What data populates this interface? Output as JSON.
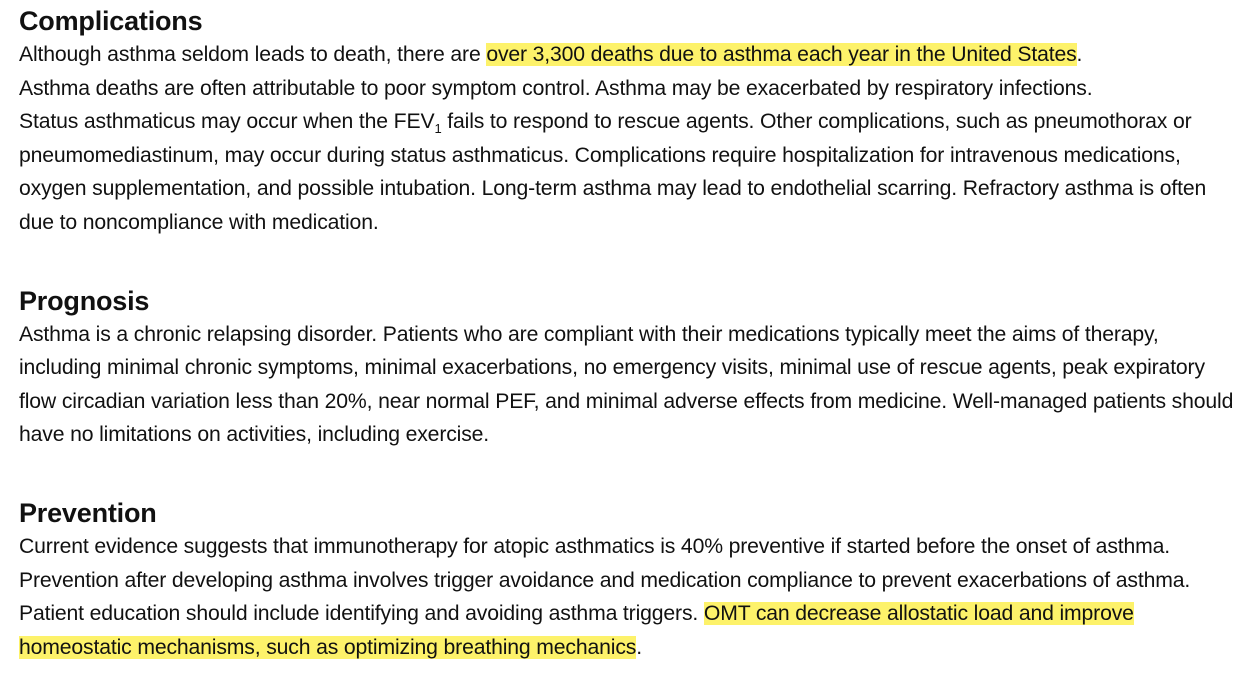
{
  "complications": {
    "heading": "Complications",
    "p1_pre": "Although asthma seldom leads to death, there are ",
    "p1_hl": "over 3,300 deaths due to asthma each year in the United States",
    "p1_post": ".",
    "p2": "Asthma deaths are often attributable to poor symptom control. Asthma may be exacerbated by respiratory infections.",
    "p3_pre": "Status asthmaticus may occur when the FEV",
    "p3_sub": "1",
    "p3_post": " fails to respond to rescue agents. Other complications, such as pneumothorax or pneumomediastinum, may occur during status asthmaticus. Complications require hospitalization for intravenous medications, oxygen supplementation, and possible intubation. Long-term asthma may lead to endothelial scarring. Refractory asthma is often due to noncompliance with medication."
  },
  "prognosis": {
    "heading": "Prognosis",
    "body": "Asthma is a chronic relapsing disorder. Patients who are compliant with their medications typically meet the aims of therapy, including minimal chronic symptoms, minimal exacerbations, no emergency visits, minimal use of rescue agents, peak expiratory flow circadian variation less than 20%, near normal PEF, and minimal adverse effects from medicine. Well-managed patients should have no limitations on activities, including exercise."
  },
  "prevention": {
    "heading": "Prevention",
    "body_pre": "Current evidence suggests that immunotherapy for atopic asthmatics is 40% preventive if started before the onset of asthma. Prevention after developing asthma involves trigger avoidance and medication compliance to prevent exacerbations of asthma. Patient education should include identifying and avoiding asthma triggers. ",
    "body_hl": "OMT can decrease allostatic load and improve homeostatic mechanisms, such as optimizing breathing mechanics",
    "body_post": "."
  },
  "colors": {
    "highlight": "#fdf26a",
    "text": "#111111",
    "background": "#ffffff"
  }
}
